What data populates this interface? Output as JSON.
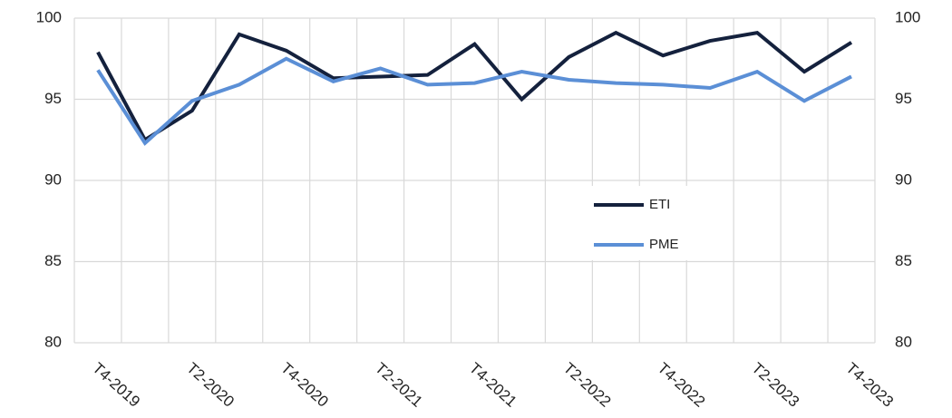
{
  "chart_data": {
    "type": "line",
    "categories": [
      "T4-2019",
      null,
      "T2-2020",
      null,
      "T4-2020",
      null,
      "T2-2021",
      null,
      "T4-2021",
      null,
      "T2-2022",
      null,
      "T4-2022",
      null,
      "T2-2023",
      null,
      "T4-2023"
    ],
    "series": [
      {
        "name": "ETI",
        "color": "#14213d",
        "values": [
          97.9,
          92.5,
          94.3,
          99.0,
          98.0,
          96.3,
          96.4,
          96.5,
          98.4,
          95.0,
          97.6,
          99.1,
          97.7,
          98.6,
          99.1,
          96.7,
          98.5
        ]
      },
      {
        "name": "PME",
        "color": "#5b8fd6",
        "values": [
          96.8,
          92.3,
          94.9,
          95.9,
          97.5,
          96.1,
          96.9,
          95.9,
          96.0,
          96.7,
          96.2,
          96.0,
          95.9,
          95.7,
          96.7,
          94.9,
          96.4
        ]
      }
    ],
    "ylim": [
      80,
      100
    ],
    "yticks": [
      80,
      85,
      90,
      95,
      100
    ],
    "y2lim": [
      80,
      100
    ],
    "y2ticks": [
      80,
      85,
      90,
      95,
      100
    ],
    "grid": true
  }
}
